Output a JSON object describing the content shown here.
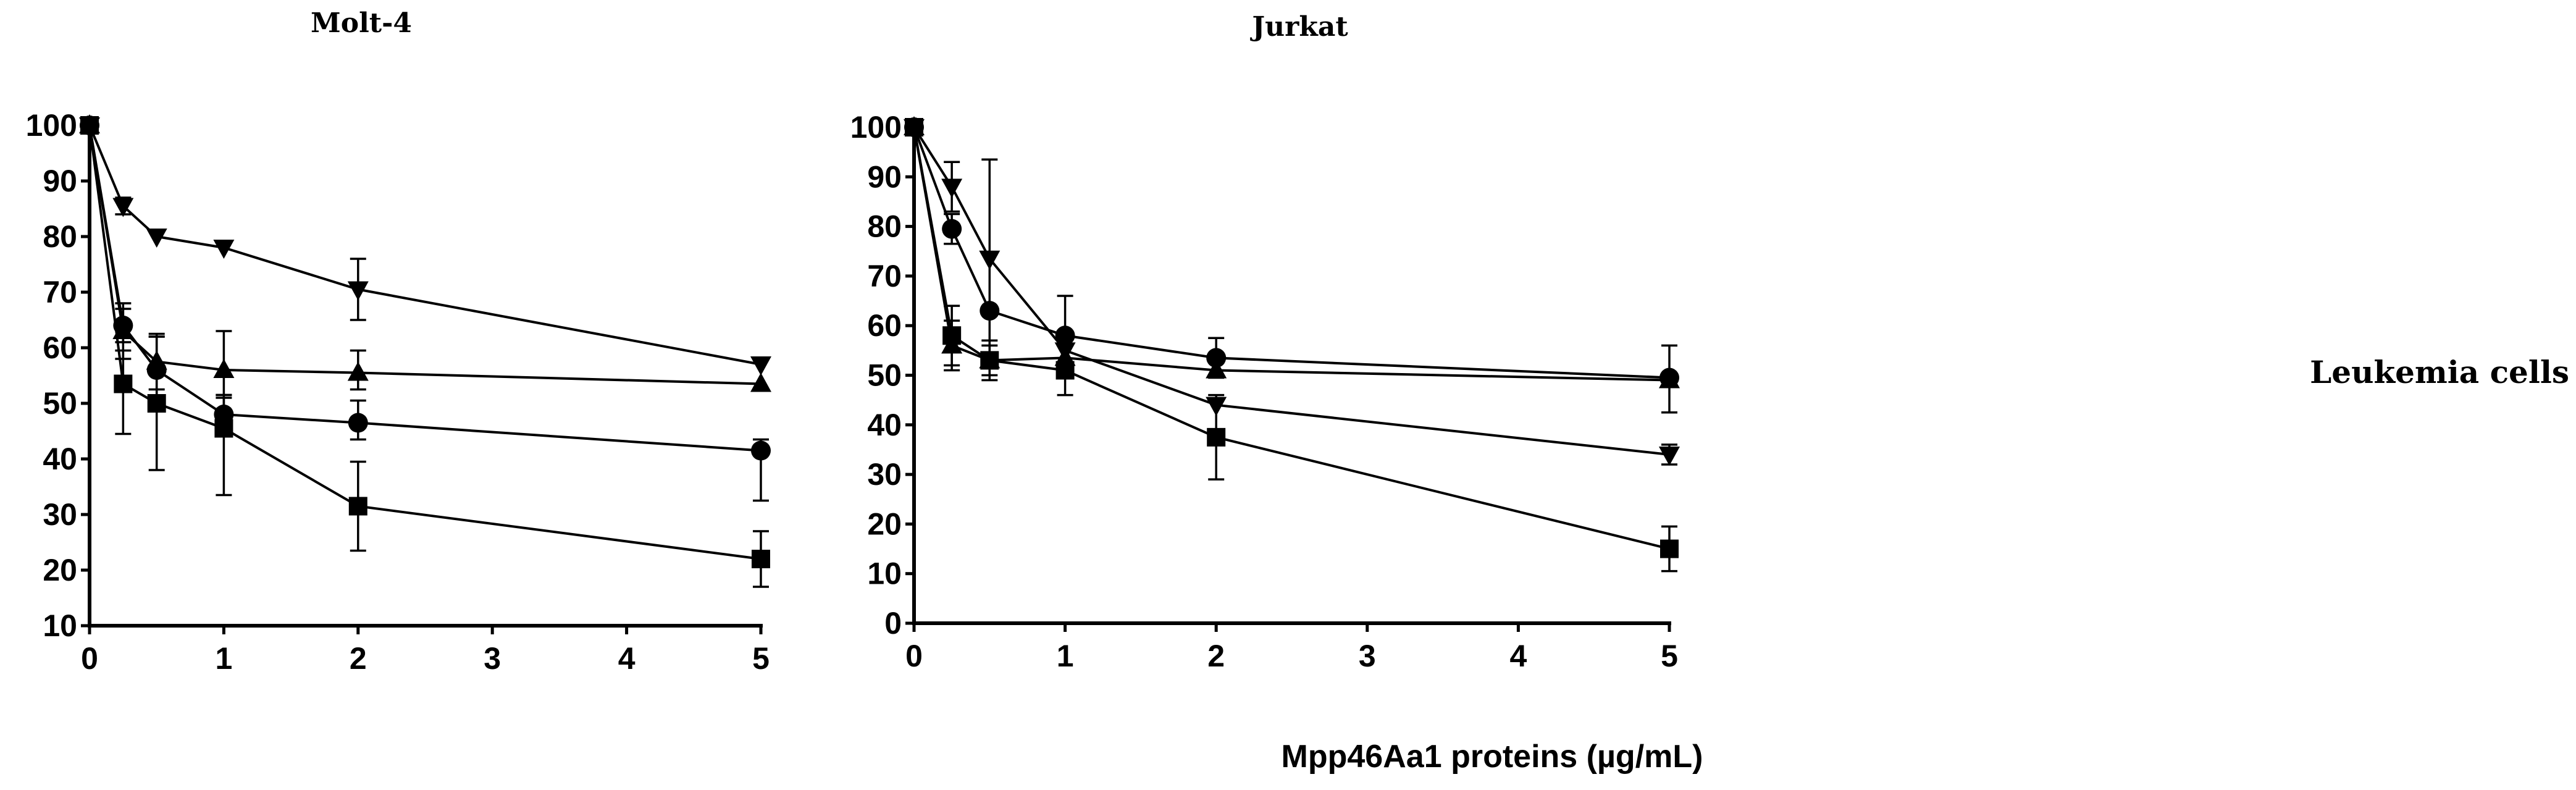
{
  "x_axis_title": "Mpp46Aa1 proteins (µg/mL)",
  "side_label": "Leukemia cells",
  "chart_data": [
    {
      "type": "line",
      "title": "Molt-4",
      "xlabel": "Mpp46Aa1 proteins (µg/mL)",
      "ylabel": "",
      "xlim": [
        0,
        5
      ],
      "ylim": [
        10,
        100
      ],
      "x_ticks": [
        0,
        1,
        2,
        3,
        4,
        5
      ],
      "y_ticks": [
        10,
        20,
        30,
        40,
        50,
        60,
        70,
        80,
        90,
        100
      ],
      "x": [
        0,
        0.25,
        0.5,
        1,
        2,
        5
      ],
      "series": [
        {
          "name": "inverted-triangle",
          "marker": "triangle-down",
          "values": [
            100,
            85.5,
            80,
            78,
            70.5,
            57
          ],
          "err_high": [
            0,
            1.5,
            0,
            0,
            5.5,
            0
          ],
          "err_low": [
            0,
            1.5,
            0,
            0,
            5.5,
            0
          ]
        },
        {
          "name": "triangle",
          "marker": "triangle-up",
          "values": [
            100,
            63,
            57.5,
            56,
            55.5,
            53.5
          ],
          "err_high": [
            0,
            5,
            5,
            7,
            4,
            0
          ],
          "err_low": [
            0,
            5,
            5,
            4.5,
            3,
            0
          ]
        },
        {
          "name": "circle",
          "marker": "circle",
          "values": [
            100,
            64,
            56,
            48,
            46.5,
            41.5
          ],
          "err_high": [
            0,
            3,
            6,
            3,
            4,
            2
          ],
          "err_low": [
            0,
            3,
            6,
            3,
            3,
            9
          ]
        },
        {
          "name": "square",
          "marker": "square",
          "values": [
            100,
            53.5,
            50,
            45.5,
            31.5,
            22
          ],
          "err_high": [
            0,
            6,
            12,
            6,
            8,
            5
          ],
          "err_low": [
            0,
            9,
            12,
            12,
            8,
            5
          ]
        }
      ]
    },
    {
      "type": "line",
      "title": "Jurkat",
      "xlabel": "Mpp46Aa1 proteins (µg/mL)",
      "ylabel": "",
      "xlim": [
        0,
        5
      ],
      "ylim": [
        0,
        100
      ],
      "x_ticks": [
        0,
        1,
        2,
        3,
        4,
        5
      ],
      "y_ticks": [
        0,
        10,
        20,
        30,
        40,
        50,
        60,
        70,
        80,
        90,
        100
      ],
      "x": [
        0,
        0.25,
        0.5,
        1,
        2,
        5
      ],
      "series": [
        {
          "name": "inverted-triangle",
          "marker": "triangle-down",
          "values": [
            100,
            88,
            73.5,
            55,
            44,
            34
          ],
          "err_high": [
            0,
            5,
            20,
            0,
            0,
            2
          ],
          "err_low": [
            0,
            5,
            20,
            0,
            0,
            2
          ]
        },
        {
          "name": "circle",
          "marker": "circle",
          "values": [
            100,
            79.5,
            63,
            58,
            53.5,
            49.5
          ],
          "err_high": [
            0,
            3,
            0,
            8,
            4,
            6.5
          ],
          "err_low": [
            0,
            3,
            0,
            8,
            4,
            7
          ]
        },
        {
          "name": "triangle",
          "marker": "triangle-up",
          "values": [
            100,
            56,
            53,
            53.5,
            51,
            49
          ],
          "err_high": [
            0,
            5,
            3,
            0,
            0,
            0
          ],
          "err_low": [
            0,
            5,
            3,
            0,
            0,
            0
          ]
        },
        {
          "name": "square",
          "marker": "square",
          "values": [
            100,
            58,
            53,
            51,
            37.5,
            15
          ],
          "err_high": [
            0,
            6,
            4,
            5,
            8.5,
            4.5
          ],
          "err_low": [
            0,
            6,
            4,
            5,
            8.5,
            4.5
          ]
        }
      ]
    }
  ]
}
